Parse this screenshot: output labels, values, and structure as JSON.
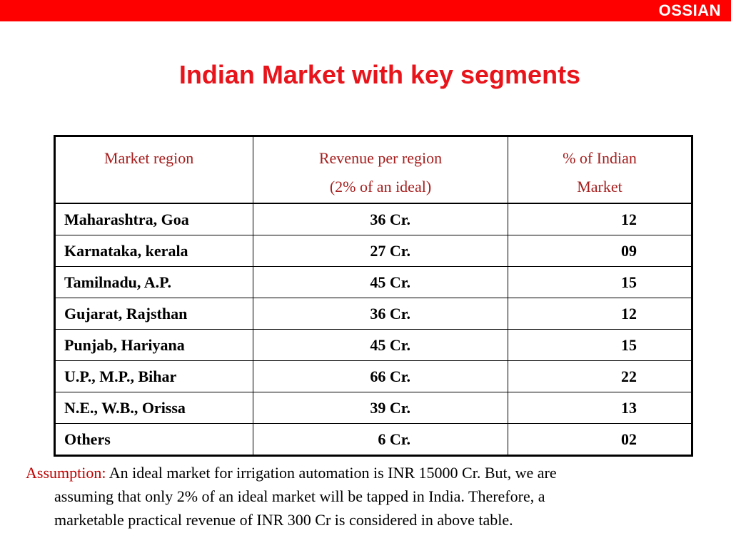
{
  "brand": "OSSIAN",
  "title": "Indian Market with key segments",
  "table": {
    "headers": {
      "region": "Market region",
      "revenue_line1": "Revenue per region",
      "revenue_line2": "(2% of an ideal)",
      "pct_line1": "% of Indian",
      "pct_line2": "Market"
    },
    "rows": [
      {
        "region": "Maharashtra, Goa",
        "revenue": "36 Cr.",
        "pct": "12"
      },
      {
        "region": "Karnataka, kerala",
        "revenue": "27 Cr.",
        "pct": "09"
      },
      {
        "region": "Tamilnadu, A.P.",
        "revenue": "45 Cr.",
        "pct": "15"
      },
      {
        "region": "Gujarat, Rajsthan",
        "revenue": "36 Cr.",
        "pct": "12"
      },
      {
        "region": "Punjab, Hariyana",
        "revenue": "45 Cr.",
        "pct": "15"
      },
      {
        "region": "U.P., M.P., Bihar",
        "revenue": "66 Cr.",
        "pct": "22"
      },
      {
        "region": "N.E., W.B., Orissa",
        "revenue": "39 Cr.",
        "pct": "13"
      },
      {
        "region": "Others",
        "revenue": "6 Cr.",
        "pct": "02"
      }
    ]
  },
  "assumption": {
    "label": "Assumption:",
    "line1": "An ideal market for irrigation automation is INR 15000 Cr. But, we are",
    "line2": "assuming that only 2% of an ideal market will be tapped in India. Therefore, a",
    "line3": "marketable practical revenue of INR 300 Cr is considered in above table."
  },
  "colors": {
    "top_bar": "#ff0000",
    "title": "#e8141b",
    "header_text": "#a61d1d",
    "assumption_label": "#c00000"
  }
}
